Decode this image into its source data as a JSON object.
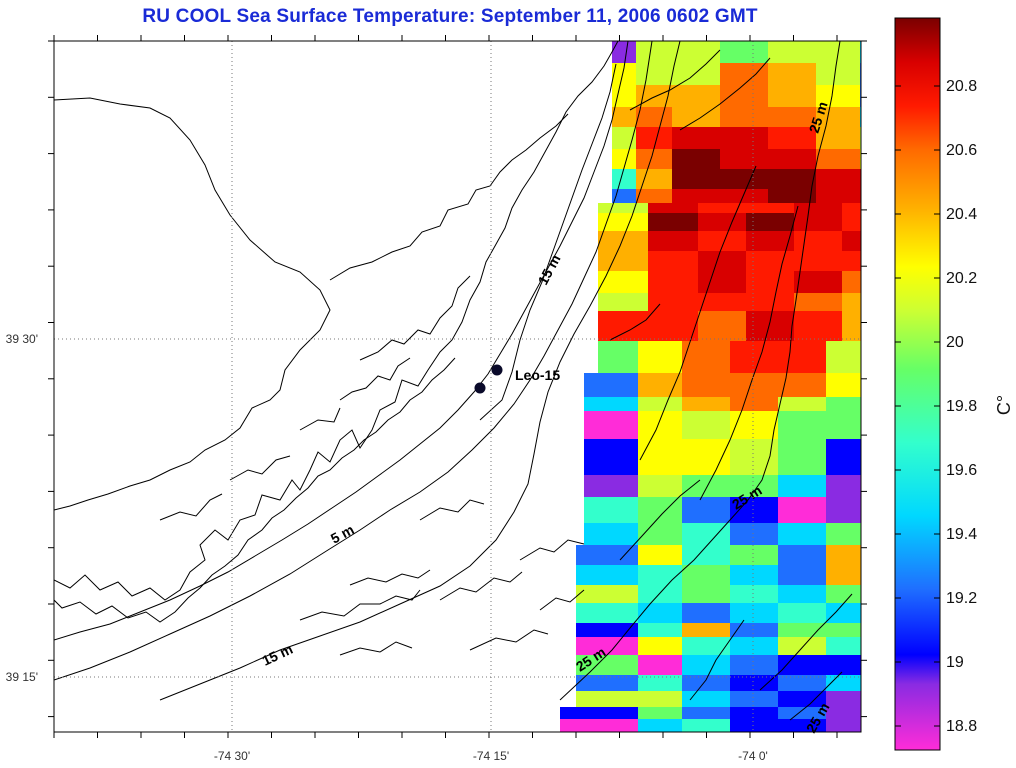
{
  "title": "RU COOL  Sea Surface Temperature:  September 11, 2006 0602 GMT",
  "axes": {
    "x_tick_labels": [
      "-74 30'",
      "-74 15'",
      "-74 0'"
    ],
    "y_tick_labels": [
      "39 30'",
      "39 15'"
    ]
  },
  "stations": {
    "label": "Leo-15"
  },
  "contour_labels": [
    "15 m",
    "5 m",
    "15 m",
    "25 m",
    "25 m",
    "25 m",
    "25 m"
  ],
  "colorbar": {
    "unit": "C°",
    "tick_labels": [
      "20.8",
      "20.6",
      "20.4",
      "20.2",
      "20",
      "19.8",
      "19.6",
      "19.4",
      "19.2",
      "19",
      "18.8"
    ],
    "range": [
      18.7,
      21.0
    ]
  },
  "colors": {
    "title": "#1a2bd6",
    "coast": "#000000",
    "station": "#0a0a2a"
  }
}
